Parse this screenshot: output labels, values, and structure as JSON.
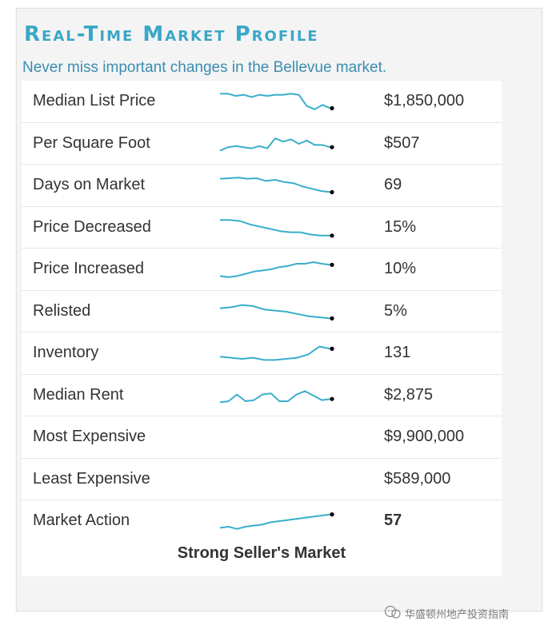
{
  "header": {
    "title": "Real-Time Market Profile",
    "subtitle": "Never miss important changes in the Bellevue market."
  },
  "colors": {
    "title": "#3aa7c8",
    "subtitle": "#3a8db0",
    "sparkline": "#3aaecb",
    "sparkline_end": "#000000"
  },
  "rows": [
    {
      "label": "Median List Price",
      "value": "$1,850,000",
      "spark": [
        0.85,
        0.85,
        0.75,
        0.8,
        0.7,
        0.8,
        0.75,
        0.8,
        0.8,
        0.85,
        0.8,
        0.3,
        0.15,
        0.35,
        0.2
      ]
    },
    {
      "label": "Per Square Foot",
      "value": "$507",
      "spark": [
        0.2,
        0.35,
        0.4,
        0.35,
        0.3,
        0.4,
        0.3,
        0.75,
        0.6,
        0.7,
        0.5,
        0.65,
        0.45,
        0.45,
        0.35
      ]
    },
    {
      "label": "Days on Market",
      "value": "69",
      "spark": [
        0.8,
        0.82,
        0.85,
        0.8,
        0.82,
        0.7,
        0.75,
        0.65,
        0.6,
        0.45,
        0.35,
        0.25,
        0.2
      ]
    },
    {
      "label": "Price Decreased",
      "value": "15%",
      "spark": [
        0.85,
        0.85,
        0.8,
        0.65,
        0.55,
        0.45,
        0.35,
        0.3,
        0.3,
        0.2,
        0.15,
        0.15
      ]
    },
    {
      "label": "Price Increased",
      "value": "10%",
      "spark": [
        0.2,
        0.15,
        0.2,
        0.3,
        0.4,
        0.45,
        0.5,
        0.6,
        0.65,
        0.75,
        0.75,
        0.82,
        0.75,
        0.7
      ]
    },
    {
      "label": "Relisted",
      "value": "5%",
      "spark": [
        0.65,
        0.7,
        0.8,
        0.75,
        0.6,
        0.55,
        0.5,
        0.4,
        0.3,
        0.25,
        0.2
      ]
    },
    {
      "label": "Inventory",
      "value": "131",
      "spark": [
        0.35,
        0.3,
        0.25,
        0.3,
        0.2,
        0.2,
        0.25,
        0.3,
        0.45,
        0.8,
        0.7
      ]
    },
    {
      "label": "Median Rent",
      "value": "$2,875",
      "spark": [
        0.2,
        0.25,
        0.55,
        0.25,
        0.3,
        0.55,
        0.6,
        0.25,
        0.25,
        0.55,
        0.7,
        0.5,
        0.3,
        0.35
      ]
    },
    {
      "label": "Most Expensive",
      "value": "$9,900,000",
      "spark": []
    },
    {
      "label": "Least Expensive",
      "value": "$589,000",
      "spark": []
    }
  ],
  "market_action": {
    "label": "Market Action",
    "value": "57",
    "status": "Strong Seller's Market",
    "spark": [
      0.2,
      0.25,
      0.15,
      0.25,
      0.3,
      0.35,
      0.45,
      0.5,
      0.55,
      0.6,
      0.65,
      0.7,
      0.75,
      0.8
    ]
  },
  "watermark": {
    "text": "华盛顿州地产投资指南"
  }
}
